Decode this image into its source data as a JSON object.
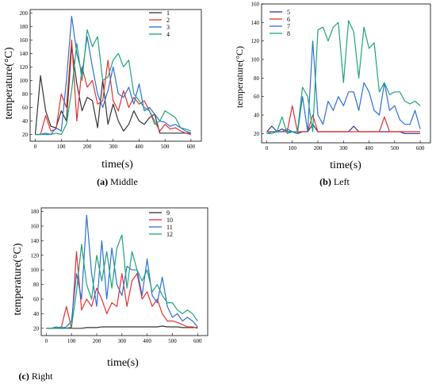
{
  "chart_data": [
    {
      "type": "line",
      "caption": "(a) Middle",
      "caption_letter": "(a)",
      "caption_text": "Middle",
      "xlabel": "time(s)",
      "ylabel": "temperature(°C)",
      "xlim": [
        -20,
        640
      ],
      "ylim": [
        10,
        205
      ],
      "xticks": [
        0,
        100,
        200,
        300,
        400,
        500,
        600
      ],
      "yticks": [
        20,
        40,
        60,
        80,
        100,
        120,
        140,
        160,
        180,
        200
      ],
      "legend_position": "top-right",
      "series": [
        {
          "name": "1",
          "color": "#333333",
          "x": [
            0,
            20,
            40,
            60,
            80,
            100,
            120,
            140,
            160,
            180,
            200,
            220,
            240,
            260,
            280,
            300,
            320,
            340,
            360,
            380,
            400,
            420,
            440,
            460,
            480,
            500,
            520,
            540,
            560,
            580,
            600
          ],
          "y": [
            20,
            107,
            55,
            32,
            30,
            55,
            40,
            150,
            95,
            55,
            75,
            70,
            30,
            100,
            35,
            65,
            40,
            25,
            35,
            55,
            40,
            35,
            45,
            50,
            22,
            22,
            22,
            22,
            22,
            22,
            22
          ]
        },
        {
          "name": "2",
          "color": "#e53030",
          "x": [
            0,
            20,
            40,
            60,
            80,
            100,
            120,
            140,
            160,
            180,
            200,
            220,
            240,
            260,
            280,
            300,
            320,
            340,
            360,
            380,
            400,
            420,
            440,
            460,
            480,
            500,
            520,
            540,
            560,
            580,
            600
          ],
          "y": [
            20,
            20,
            48,
            25,
            28,
            80,
            60,
            160,
            40,
            120,
            90,
            100,
            65,
            70,
            130,
            70,
            55,
            85,
            60,
            75,
            65,
            70,
            55,
            40,
            25,
            35,
            28,
            30,
            25,
            22,
            20
          ]
        },
        {
          "name": "3",
          "color": "#2d6fd6",
          "x": [
            0,
            20,
            40,
            60,
            80,
            100,
            120,
            140,
            160,
            180,
            200,
            220,
            240,
            260,
            280,
            300,
            320,
            340,
            360,
            380,
            400,
            420,
            440,
            460,
            480,
            500,
            520,
            540,
            560,
            580,
            600
          ],
          "y": [
            20,
            20,
            22,
            20,
            30,
            25,
            100,
            195,
            140,
            110,
            165,
            120,
            80,
            60,
            85,
            120,
            80,
            75,
            90,
            65,
            95,
            55,
            60,
            50,
            40,
            38,
            32,
            35,
            30,
            25,
            22
          ]
        },
        {
          "name": "4",
          "color": "#1fa37a",
          "x": [
            0,
            20,
            40,
            60,
            80,
            100,
            120,
            140,
            160,
            180,
            200,
            220,
            240,
            260,
            280,
            300,
            320,
            340,
            360,
            380,
            400,
            420,
            440,
            460,
            480,
            500,
            520,
            540,
            560,
            580,
            600
          ],
          "y": [
            20,
            20,
            20,
            20,
            22,
            20,
            35,
            85,
            155,
            100,
            175,
            150,
            165,
            100,
            105,
            130,
            140,
            120,
            130,
            80,
            70,
            60,
            55,
            35,
            40,
            55,
            50,
            45,
            30,
            28,
            25
          ]
        }
      ]
    },
    {
      "type": "line",
      "caption": "(b) Left",
      "caption_letter": "(b)",
      "caption_text": "Left",
      "xlabel": "time(s)",
      "ylabel": "temperature(°C)",
      "xlim": [
        -20,
        640
      ],
      "ylim": [
        10,
        160
      ],
      "xticks": [
        0,
        100,
        200,
        300,
        400,
        500,
        600
      ],
      "yticks": [
        20,
        40,
        60,
        80,
        100,
        120,
        140,
        160
      ],
      "legend_position": "top-left",
      "series": [
        {
          "name": "5",
          "color": "#3b2e8a",
          "x": [
            0,
            20,
            40,
            60,
            80,
            100,
            120,
            140,
            160,
            180,
            200,
            220,
            240,
            260,
            280,
            300,
            320,
            340,
            360,
            380,
            400,
            420,
            440,
            460,
            480,
            500,
            520,
            540,
            560,
            580,
            600
          ],
          "y": [
            22,
            28,
            22,
            25,
            22,
            22,
            20,
            22,
            22,
            30,
            22,
            22,
            22,
            22,
            22,
            22,
            22,
            28,
            22,
            22,
            22,
            22,
            22,
            22,
            22,
            22,
            22,
            20,
            20,
            20,
            20
          ]
        },
        {
          "name": "6",
          "color": "#e53030",
          "x": [
            0,
            20,
            40,
            60,
            80,
            100,
            120,
            140,
            160,
            180,
            200,
            220,
            240,
            260,
            280,
            300,
            320,
            340,
            360,
            380,
            400,
            420,
            440,
            460,
            480,
            500,
            520,
            540,
            560,
            580,
            600
          ],
          "y": [
            22,
            22,
            22,
            22,
            22,
            50,
            22,
            22,
            22,
            40,
            22,
            22,
            22,
            22,
            22,
            22,
            22,
            22,
            22,
            22,
            22,
            22,
            22,
            38,
            22,
            22,
            22,
            22,
            22,
            22,
            22
          ]
        },
        {
          "name": "7",
          "color": "#2d6fd6",
          "x": [
            0,
            20,
            40,
            60,
            80,
            100,
            120,
            140,
            160,
            180,
            200,
            220,
            240,
            260,
            280,
            300,
            320,
            340,
            360,
            380,
            400,
            420,
            440,
            460,
            480,
            500,
            520,
            540,
            560,
            580,
            600
          ],
          "y": [
            20,
            22,
            22,
            22,
            25,
            22,
            20,
            60,
            22,
            120,
            40,
            30,
            55,
            45,
            60,
            50,
            65,
            65,
            45,
            75,
            65,
            45,
            40,
            75,
            45,
            50,
            35,
            30,
            30,
            45,
            25
          ]
        },
        {
          "name": "8",
          "color": "#1fa37a",
          "x": [
            0,
            20,
            40,
            60,
            80,
            100,
            120,
            140,
            160,
            180,
            200,
            220,
            240,
            260,
            280,
            300,
            320,
            340,
            360,
            380,
            400,
            420,
            440,
            460,
            480,
            500,
            520,
            540,
            560,
            580,
            600
          ],
          "y": [
            20,
            20,
            22,
            38,
            20,
            22,
            22,
            70,
            60,
            22,
            132,
            135,
            120,
            135,
            140,
            75,
            142,
            130,
            80,
            135,
            112,
            118,
            65,
            75,
            62,
            65,
            65,
            55,
            52,
            55,
            50
          ]
        }
      ]
    },
    {
      "type": "line",
      "caption": "(c) Right",
      "caption_letter": "(c)",
      "caption_text": "Right",
      "xlabel": "time(s)",
      "ylabel": "temperature(°C)",
      "xlim": [
        -20,
        640
      ],
      "ylim": [
        10,
        185
      ],
      "xticks": [
        0,
        100,
        200,
        300,
        400,
        500,
        600
      ],
      "yticks": [
        20,
        40,
        60,
        80,
        100,
        120,
        140,
        160,
        180
      ],
      "legend_position": "top-right",
      "series": [
        {
          "name": "9",
          "color": "#333333",
          "x": [
            0,
            20,
            40,
            60,
            80,
            100,
            120,
            140,
            160,
            180,
            200,
            220,
            240,
            260,
            280,
            300,
            320,
            340,
            360,
            380,
            400,
            420,
            440,
            460,
            480,
            500,
            520,
            540,
            560,
            580,
            600
          ],
          "y": [
            20,
            20,
            20,
            20,
            20,
            20,
            20,
            20,
            21,
            21,
            21,
            22,
            22,
            22,
            22,
            22,
            22,
            22,
            22,
            22,
            22,
            22,
            22,
            23,
            22,
            22,
            22,
            21,
            21,
            21,
            21
          ]
        },
        {
          "name": "10",
          "color": "#e53030",
          "x": [
            0,
            20,
            40,
            60,
            80,
            100,
            120,
            140,
            160,
            180,
            200,
            220,
            240,
            260,
            280,
            300,
            320,
            340,
            360,
            380,
            400,
            420,
            440,
            460,
            480,
            500,
            520,
            540,
            560,
            580,
            600
          ],
          "y": [
            20,
            20,
            20,
            22,
            50,
            20,
            125,
            45,
            60,
            50,
            75,
            60,
            40,
            55,
            50,
            95,
            50,
            85,
            95,
            60,
            70,
            50,
            60,
            40,
            30,
            30,
            28,
            25,
            22,
            22,
            20
          ]
        },
        {
          "name": "11",
          "color": "#2d6fd6",
          "x": [
            0,
            20,
            40,
            60,
            80,
            100,
            120,
            140,
            160,
            180,
            200,
            220,
            240,
            260,
            280,
            300,
            320,
            340,
            360,
            380,
            400,
            420,
            440,
            460,
            480,
            500,
            520,
            540,
            560,
            580,
            600
          ],
          "y": [
            20,
            20,
            22,
            20,
            22,
            30,
            95,
            60,
            175,
            95,
            50,
            140,
            60,
            130,
            80,
            65,
            105,
            100,
            100,
            65,
            115,
            65,
            55,
            90,
            50,
            35,
            40,
            30,
            35,
            30,
            22
          ]
        },
        {
          "name": "12",
          "color": "#1fa37a",
          "x": [
            0,
            20,
            40,
            60,
            80,
            100,
            120,
            140,
            160,
            180,
            200,
            220,
            240,
            260,
            280,
            300,
            320,
            340,
            360,
            380,
            400,
            420,
            440,
            460,
            480,
            500,
            520,
            540,
            560,
            580,
            600
          ],
          "y": [
            20,
            20,
            20,
            22,
            20,
            22,
            70,
            135,
            80,
            60,
            120,
            85,
            125,
            75,
            130,
            148,
            75,
            125,
            100,
            85,
            100,
            70,
            80,
            65,
            55,
            55,
            45,
            40,
            45,
            40,
            30
          ]
        }
      ]
    }
  ]
}
